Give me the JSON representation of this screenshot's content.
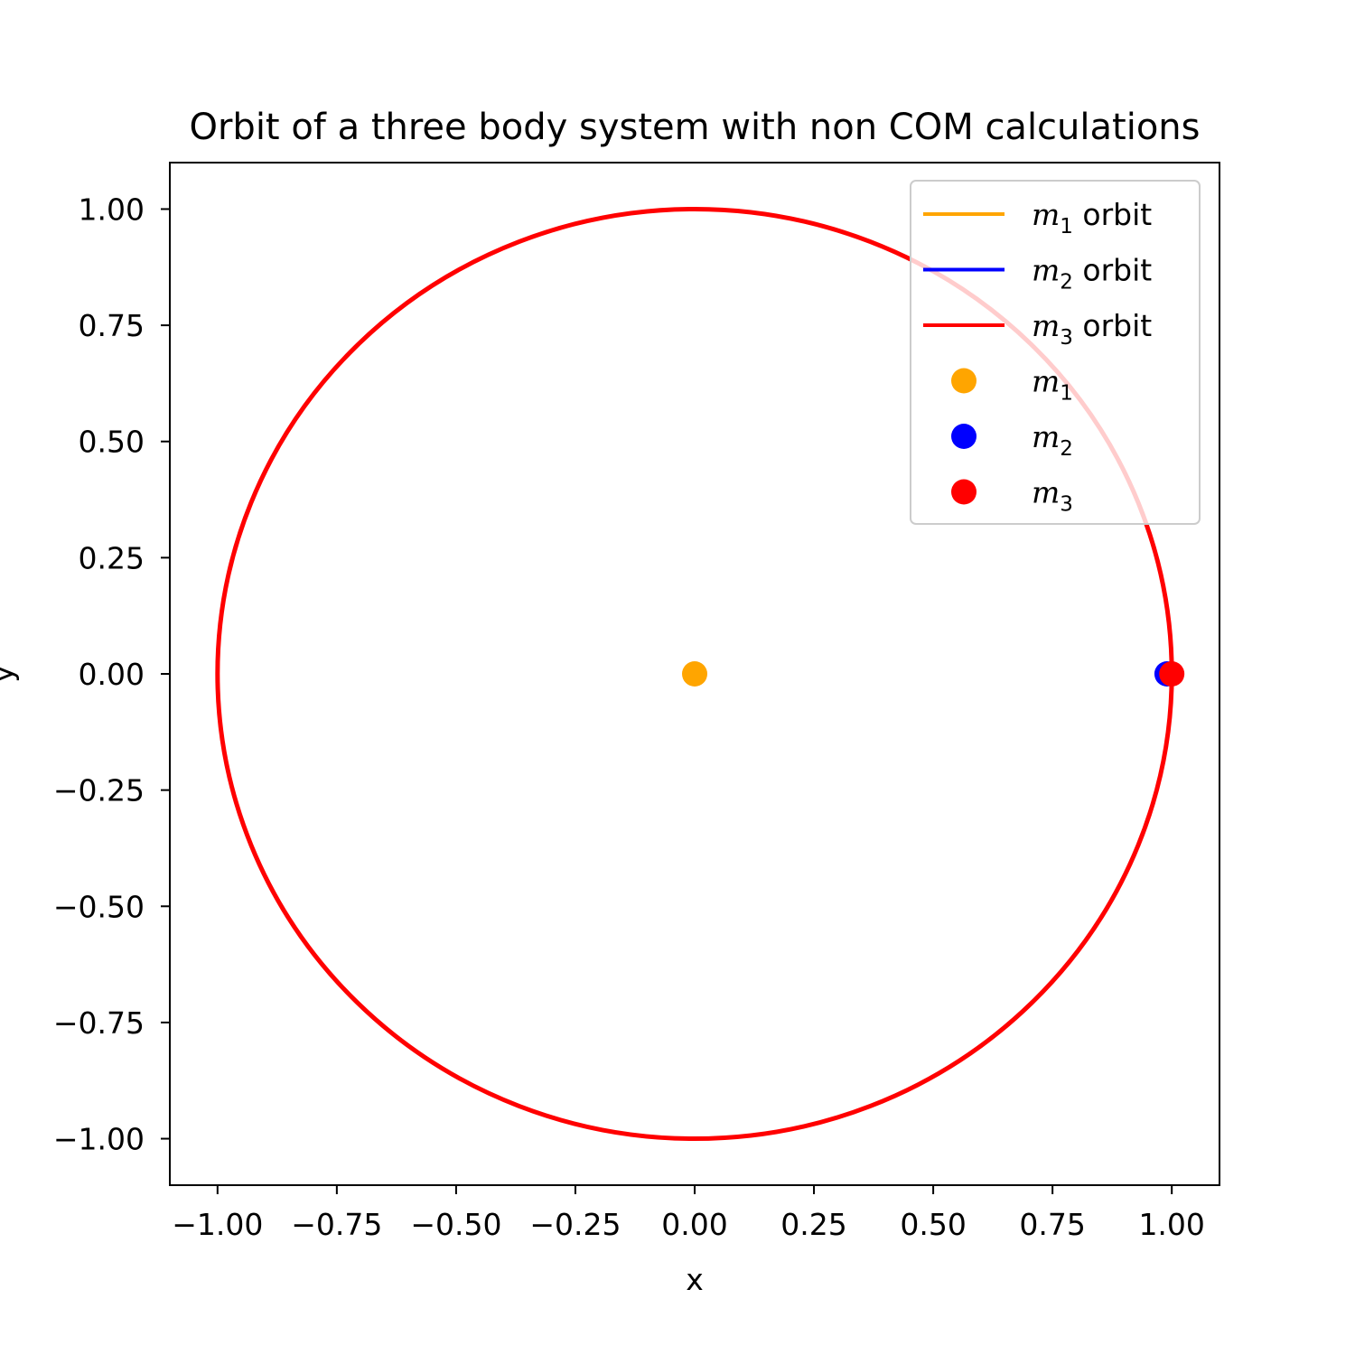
{
  "chart_data": {
    "type": "line",
    "title": "Orbit of a three body system with non COM calculations",
    "xlabel": "x",
    "ylabel": "y",
    "xlim": [
      -1.1,
      1.1
    ],
    "ylim": [
      -1.1,
      1.1
    ],
    "xticks": [
      -1.0,
      -0.75,
      -0.5,
      -0.25,
      0.0,
      0.25,
      0.5,
      0.75,
      1.0
    ],
    "yticks": [
      -1.0,
      -0.75,
      -0.5,
      -0.25,
      0.0,
      0.25,
      0.5,
      0.75,
      1.0
    ],
    "xtick_labels": [
      "−1.00",
      "−0.75",
      "−0.50",
      "−0.25",
      "0.00",
      "0.25",
      "0.50",
      "0.75",
      "1.00"
    ],
    "ytick_labels": [
      "−1.00",
      "−0.75",
      "−0.50",
      "−0.25",
      "0.00",
      "0.25",
      "0.50",
      "0.75",
      "1.00"
    ],
    "grid": false,
    "legend_position": "top-right",
    "series": [
      {
        "name": "m",
        "subscript": "1",
        "suffix": " orbit",
        "color": "#ffa500",
        "kind": "line",
        "orbit": {
          "center_x": 0.0,
          "center_y": 0.0,
          "radius": 0.0
        }
      },
      {
        "name": "m",
        "subscript": "2",
        "suffix": " orbit",
        "color": "#0000ff",
        "kind": "line",
        "orbit": {
          "center_x": 0.0,
          "center_y": 0.0,
          "radius": 1.0
        }
      },
      {
        "name": "m",
        "subscript": "3",
        "suffix": " orbit",
        "color": "#ff0000",
        "kind": "line",
        "orbit": {
          "center_x": 0.0,
          "center_y": 0.0,
          "radius": 1.0
        }
      }
    ],
    "bodies": [
      {
        "name": "m",
        "subscript": "1",
        "suffix": "",
        "color": "#ffa500",
        "x": 0.0,
        "y": 0.0
      },
      {
        "name": "m",
        "subscript": "2",
        "suffix": "",
        "color": "#0000ff",
        "x": 0.99,
        "y": 0.0
      },
      {
        "name": "m",
        "subscript": "3",
        "suffix": "",
        "color": "#ff0000",
        "x": 1.0,
        "y": 0.0
      }
    ]
  }
}
